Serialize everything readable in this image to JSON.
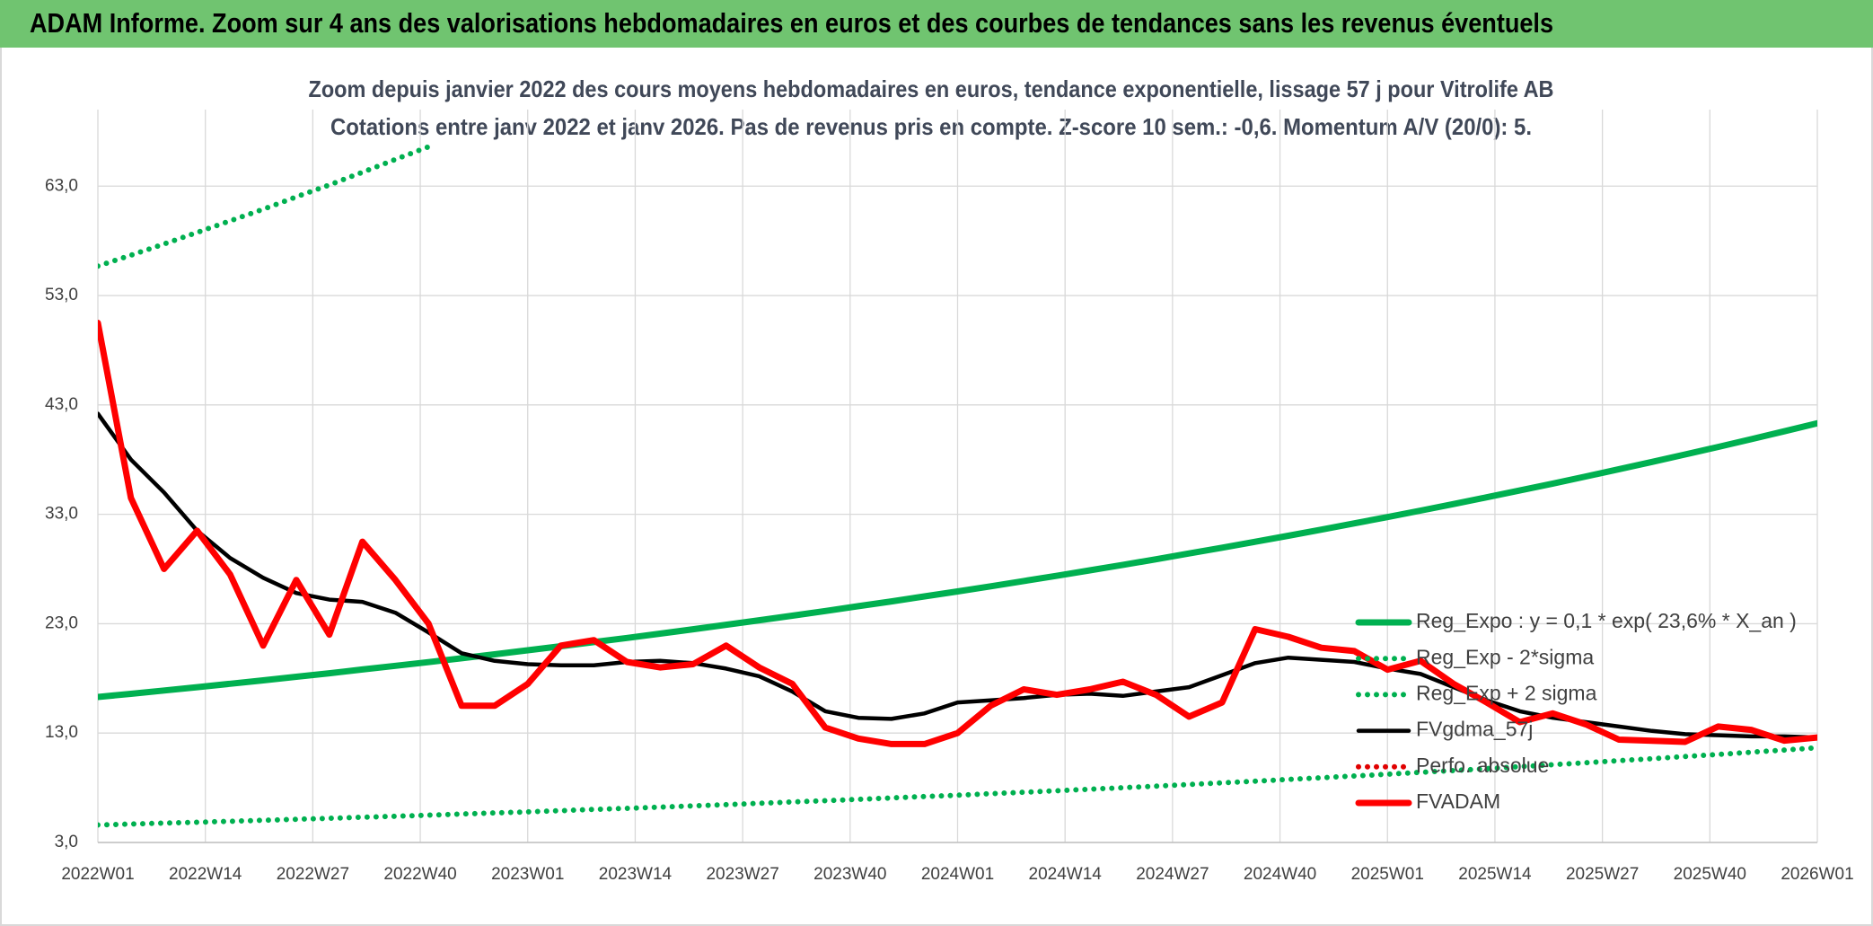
{
  "header": {
    "title": "ADAM Informe. Zoom sur 4 ans des valorisations hebdomadaires en euros et des courbes de tendances sans les revenus éventuels"
  },
  "chart_data": {
    "type": "line",
    "title": "Zoom depuis janvier 2022 des cours moyens hebdomadaires en euros, tendance exponentielle, lissage 57 j pour Vitrolife AB",
    "subtitle": "Cotations entre janv 2022 et janv 2026. Pas de revenus pris en compte. Z-score 10 sem.: -0,6. Momentum A/V (20/0): 5.",
    "x": [
      0,
      4,
      8,
      12,
      16,
      20,
      24,
      28,
      32,
      36,
      40,
      44,
      48,
      52,
      56,
      60,
      64,
      68,
      72,
      76,
      80,
      84,
      88,
      92,
      96,
      100,
      104,
      108,
      112,
      116,
      120,
      124,
      128,
      132,
      136,
      140,
      144,
      148,
      152,
      156,
      160,
      164,
      168,
      172,
      176,
      180,
      184,
      188,
      192,
      196,
      200,
      204,
      208
    ],
    "xlim": [
      0,
      208
    ],
    "xticks": [
      {
        "value": 0,
        "label": "2022W01"
      },
      {
        "value": 13,
        "label": "2022W14"
      },
      {
        "value": 26,
        "label": "2022W27"
      },
      {
        "value": 39,
        "label": "2022W40"
      },
      {
        "value": 52,
        "label": "2023W01"
      },
      {
        "value": 65,
        "label": "2023W14"
      },
      {
        "value": 78,
        "label": "2023W27"
      },
      {
        "value": 91,
        "label": "2023W40"
      },
      {
        "value": 104,
        "label": "2024W01"
      },
      {
        "value": 117,
        "label": "2024W14"
      },
      {
        "value": 130,
        "label": "2024W27"
      },
      {
        "value": 143,
        "label": "2024W40"
      },
      {
        "value": 156,
        "label": "2025W01"
      },
      {
        "value": 169,
        "label": "2025W14"
      },
      {
        "value": 182,
        "label": "2025W27"
      },
      {
        "value": 195,
        "label": "2025W40"
      },
      {
        "value": 208,
        "label": "2026W01"
      }
    ],
    "ylim": [
      3,
      70
    ],
    "yticks": [
      {
        "value": 3,
        "label": "3,0"
      },
      {
        "value": 13,
        "label": "13,0"
      },
      {
        "value": 23,
        "label": "23,0"
      },
      {
        "value": 33,
        "label": "33,0"
      },
      {
        "value": 43,
        "label": "43,0"
      },
      {
        "value": 53,
        "label": "53,0"
      },
      {
        "value": 63,
        "label": "63,0"
      }
    ],
    "grid": true,
    "legend": "right",
    "series": [
      {
        "name": "Reg_Expo : y = 0,1 * exp( 23,6% *  X_an )",
        "color": "#00b050",
        "style": "solid",
        "values": [
          16.3,
          16.59,
          16.89,
          17.2,
          17.51,
          17.82,
          18.15,
          18.47,
          18.81,
          19.15,
          19.49,
          19.84,
          20.2,
          20.57,
          20.94,
          21.32,
          21.7,
          22.09,
          22.49,
          22.9,
          23.31,
          23.73,
          24.16,
          24.6,
          25.04,
          25.5,
          25.95,
          26.42,
          26.9,
          27.38,
          27.88,
          28.38,
          28.89,
          29.42,
          29.95,
          30.49,
          31.04,
          31.6,
          32.17,
          32.75,
          33.34,
          33.94,
          34.55,
          35.18,
          35.81,
          36.46,
          37.12,
          37.79,
          38.47,
          39.16,
          39.87,
          40.59,
          41.32
        ]
      },
      {
        "name": "Reg_Exp - 2*sigma",
        "color": "#00b050",
        "style": "dotted",
        "values": [
          4.6,
          4.68,
          4.77,
          4.85,
          4.94,
          5.03,
          5.12,
          5.21,
          5.31,
          5.4,
          5.5,
          5.6,
          5.7,
          5.8,
          5.91,
          6.02,
          6.12,
          6.23,
          6.35,
          6.46,
          6.58,
          6.7,
          6.82,
          6.94,
          7.07,
          7.2,
          7.32,
          7.46,
          7.59,
          7.73,
          7.87,
          8.01,
          8.15,
          8.3,
          8.45,
          8.6,
          8.76,
          8.92,
          9.08,
          9.24,
          9.41,
          9.58,
          9.75,
          9.93,
          10.11,
          10.29,
          10.48,
          10.66,
          10.86,
          11.05,
          11.25,
          11.45,
          11.66
        ]
      },
      {
        "name": "Reg_Exp + 2 sigma",
        "color": "#00b050",
        "style": "dotted",
        "values": [
          55.7,
          56.69,
          57.71,
          58.77,
          59.83,
          60.89,
          62.02,
          63.11,
          64.27,
          65.44,
          66.6,
          null,
          null,
          null,
          null,
          null,
          null,
          null,
          null,
          null,
          null,
          null,
          null,
          null,
          null,
          null,
          null,
          null,
          null,
          null,
          null,
          null,
          null,
          null,
          null,
          null,
          null,
          null,
          null,
          null,
          null,
          null,
          null,
          null,
          null,
          null,
          null,
          null,
          null,
          null,
          null,
          null,
          null
        ]
      },
      {
        "name": "FVgdma_57j",
        "color": "#000000",
        "style": "solid",
        "values": [
          42.2,
          38.0,
          35.0,
          31.5,
          29.0,
          27.2,
          25.8,
          25.2,
          25.0,
          24.0,
          22.2,
          20.3,
          19.6,
          19.3,
          19.2,
          19.2,
          19.5,
          19.6,
          19.4,
          18.9,
          18.2,
          16.8,
          15.0,
          14.4,
          14.3,
          14.8,
          15.8,
          16.0,
          16.2,
          16.5,
          16.6,
          16.4,
          16.8,
          17.2,
          18.3,
          19.4,
          19.9,
          19.7,
          19.5,
          18.9,
          18.4,
          17.2,
          16.0,
          15.0,
          14.4,
          14.0,
          13.6,
          13.2,
          12.9,
          12.8,
          12.7,
          12.7,
          12.6
        ]
      },
      {
        "name": "Perfo. absolue",
        "color": "#e00000",
        "style": "dotted",
        "values": [
          null,
          null,
          null,
          null,
          null,
          null,
          null,
          null,
          null,
          null,
          null,
          null,
          null,
          null,
          null,
          null,
          null,
          null,
          null,
          null,
          null,
          null,
          null,
          null,
          null,
          null,
          null,
          null,
          null,
          null,
          null,
          null,
          null,
          null,
          null,
          null,
          null,
          null,
          null,
          null,
          null,
          null,
          null,
          null,
          null,
          null,
          null,
          null,
          null,
          null,
          null,
          null,
          null
        ]
      },
      {
        "name": "FVADAM",
        "color": "#ff0000",
        "style": "solid",
        "values": [
          50.5,
          34.5,
          28.0,
          31.5,
          27.5,
          21.0,
          27.0,
          22.0,
          30.5,
          27.0,
          23.0,
          15.5,
          15.5,
          17.5,
          21.0,
          21.5,
          19.5,
          19.0,
          19.3,
          21.0,
          19.0,
          17.5,
          13.5,
          12.5,
          12.0,
          12.0,
          13.0,
          15.5,
          17.0,
          16.5,
          17.0,
          17.7,
          16.5,
          14.5,
          15.8,
          22.5,
          21.8,
          20.8,
          20.5,
          18.8,
          19.6,
          17.5,
          15.8,
          14.0,
          14.8,
          13.8,
          12.4,
          12.3,
          12.2,
          13.6,
          13.3,
          12.3,
          12.6
        ]
      }
    ]
  }
}
